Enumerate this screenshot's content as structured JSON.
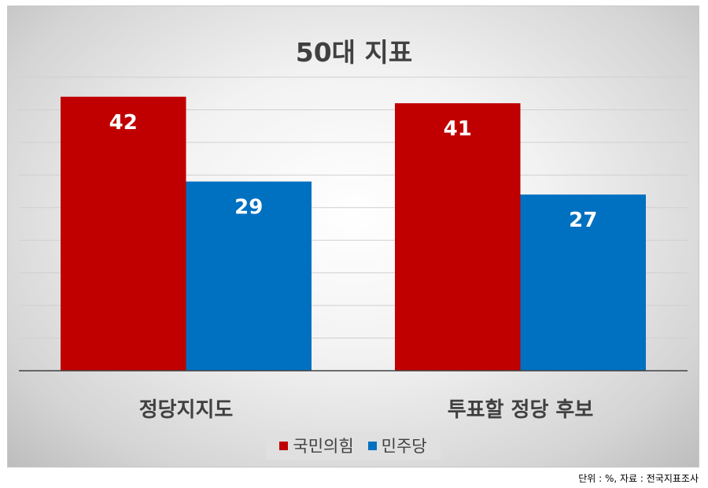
{
  "chart_data": {
    "type": "bar",
    "title": "50대 지표",
    "categories": [
      "정당지지도",
      "투표할 정당 후보"
    ],
    "series": [
      {
        "name": "국민의힘",
        "color": "#c00000",
        "values": [
          42,
          41
        ]
      },
      {
        "name": "민주당",
        "color": "#0070c0",
        "values": [
          29,
          27
        ]
      }
    ],
    "ylim": [
      0,
      45
    ],
    "y_grid_step": 5,
    "grid": true,
    "y_tick_labels_shown": false,
    "legend_position": "bottom",
    "data_labels": true
  },
  "source_note": "단위 : %, 자료 : 전국지표조사"
}
